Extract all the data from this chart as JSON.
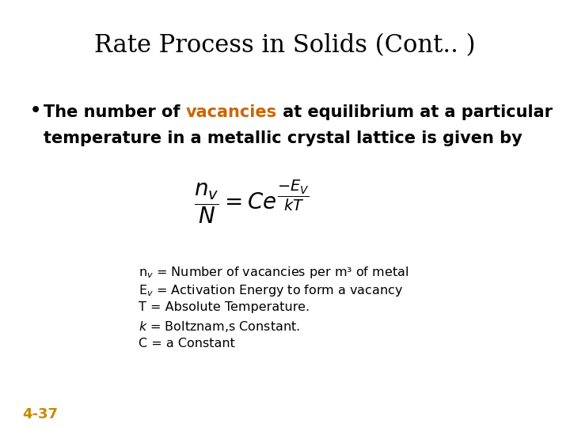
{
  "title": "Rate Process in Solids (Cont.. )",
  "title_fontsize": 22,
  "title_color": "#000000",
  "background_color": "#ffffff",
  "bullet_fontsize": 15,
  "bullet_color": "#000000",
  "vacancies_color": "#CC6600",
  "formula_fontsize": 20,
  "def_fontsize": 11.5,
  "def_color": "#000000",
  "footer_text": "4-37",
  "footer_color": "#CC8800",
  "footer_fontsize": 13,
  "definitions": [
    "n$_{v}$ = Number of vacancies per m³ of metal",
    "E$_{v}$ = Activation Energy to form a vacancy",
    "T = Absolute Temperature.",
    "$k$ = Boltznam,s Constant.",
    "C = a Constant"
  ]
}
